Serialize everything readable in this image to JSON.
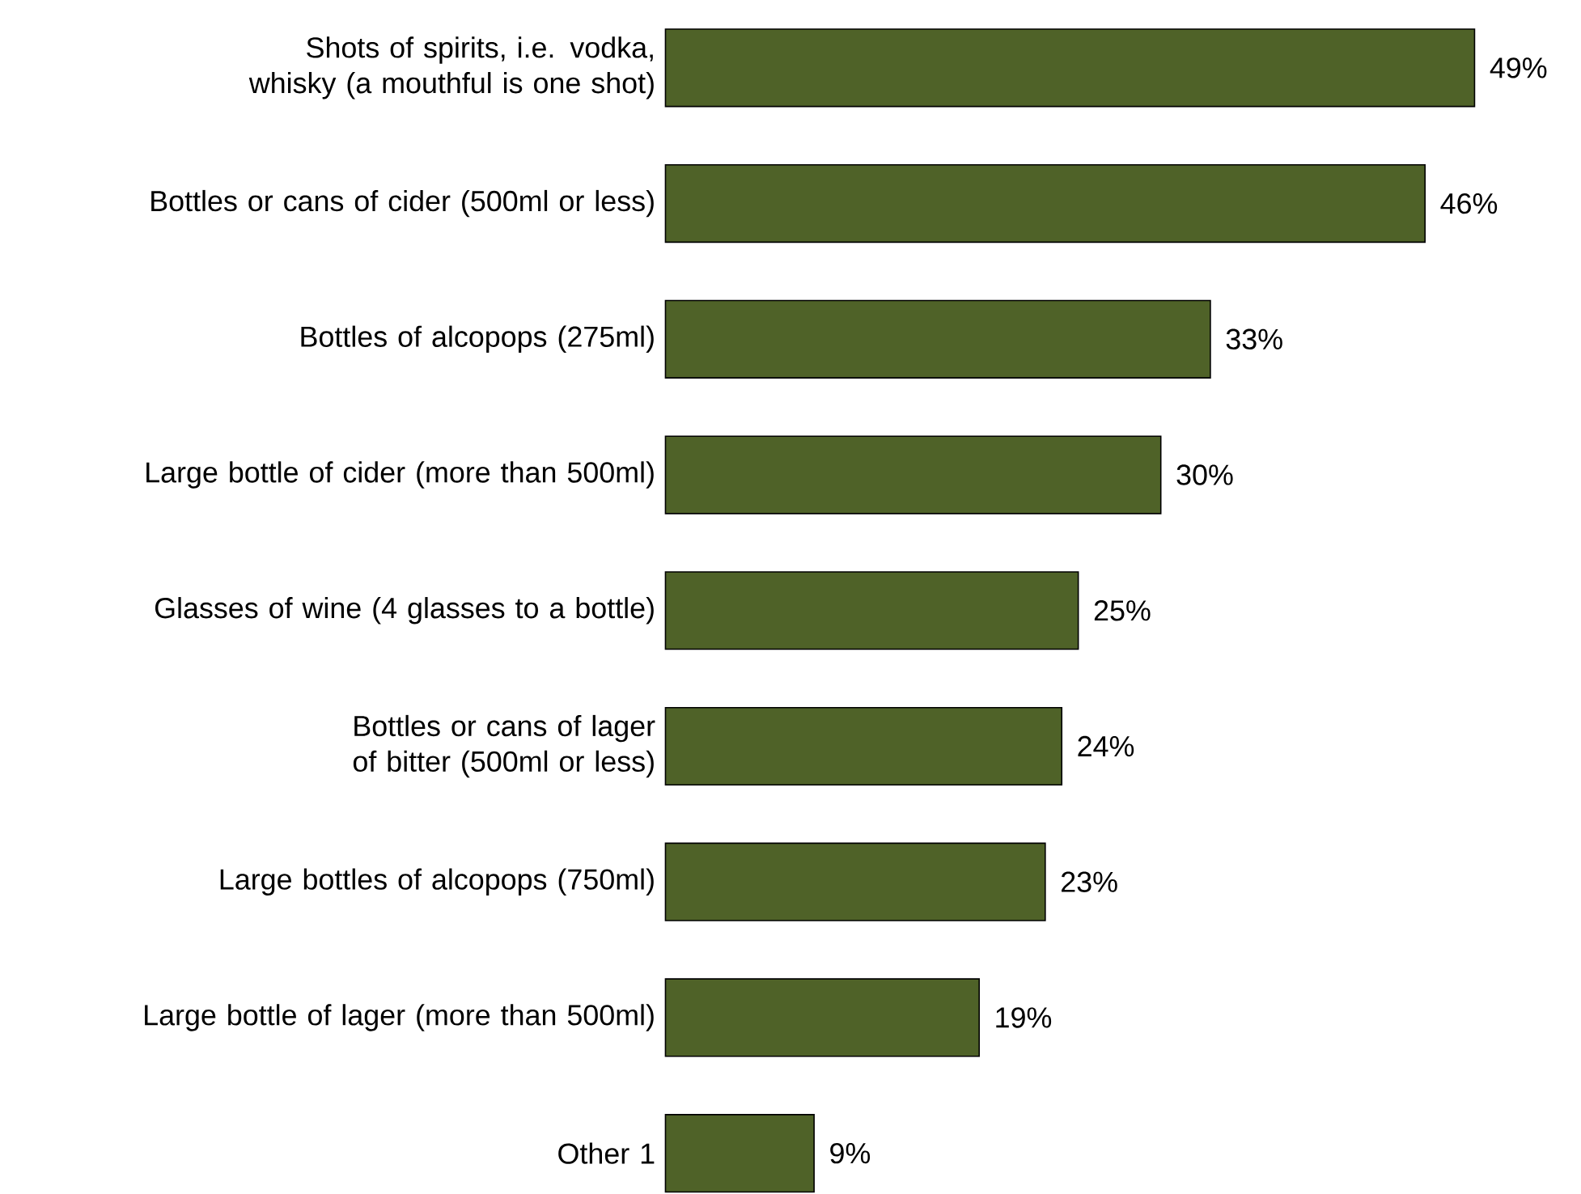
{
  "chart_data": {
    "type": "bar",
    "orientation": "horizontal",
    "categories": [
      "Shots of spirits, i.e. vodka, whisky (a mouthful is one shot)",
      "Bottles or cans of cider (500ml or less)",
      "Bottles of alcopops (275ml)",
      "Large bottle of cider (more than 500ml)",
      "Glasses of wine (4 glasses to a bottle)",
      "Bottles or cans of lager of bitter (500ml or less)",
      "Large bottles of alcopops (750ml)",
      "Large bottle of lager (more than 500ml)",
      "Other 1"
    ],
    "values": [
      49,
      46,
      33,
      30,
      25,
      24,
      23,
      19,
      9
    ],
    "value_labels": [
      "49%",
      "46%",
      "33%",
      "30%",
      "25%",
      "24%",
      "23%",
      "19%",
      "9%"
    ],
    "color": "#4f6228"
  }
}
